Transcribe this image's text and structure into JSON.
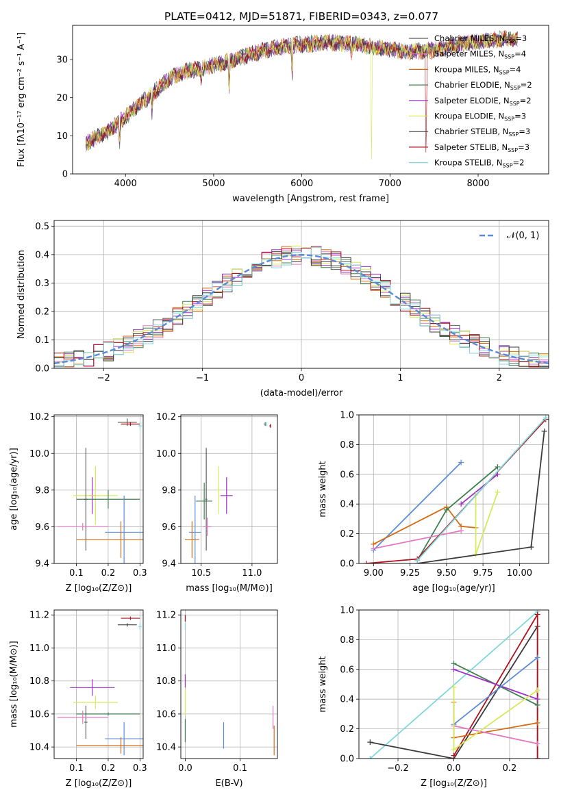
{
  "title": "PLATE=0412, MJD=51871, FIBERID=0343, z=0.077",
  "colors": {
    "s0": "#5b5b5b",
    "s1": "#e377c2",
    "s2": "#d46b12",
    "s3": "#3f7f4f",
    "s4": "#9d31c1",
    "s5": "#d7e85a",
    "s6": "#3a3a3a",
    "s7": "#b0121b",
    "s8": "#7fd6dc",
    "blue": "#5b8bd6"
  },
  "chart_data": [
    {
      "type": "line",
      "name": "spectrum",
      "xlabel": "wavelength [Angstrom, rest frame]",
      "ylabel": "Flux [fλ10⁻¹⁷ erg cm⁻² s⁻¹ A⁻¹]",
      "xlim": [
        3400,
        8800
      ],
      "ylim": [
        0,
        39
      ],
      "xticks": [
        4000,
        5000,
        6000,
        7000,
        8000
      ],
      "yticks": [
        0,
        10,
        20,
        30
      ],
      "legend": "upper right",
      "legend_items": [
        {
          "label": "Chabrier MILES, N",
          "sub": "SSP",
          "eq": "=3",
          "color": "s0"
        },
        {
          "label": "Salpeter MILES, N",
          "sub": "SSP",
          "eq": "=4",
          "color": "s1"
        },
        {
          "label": "Kroupa MILES, N",
          "sub": "SSP",
          "eq": "=4",
          "color": "s2"
        },
        {
          "label": "Chabrier ELODIE, N",
          "sub": "SSP",
          "eq": "=2",
          "color": "s3"
        },
        {
          "label": "Salpeter ELODIE, N",
          "sub": "SSP",
          "eq": "=2",
          "color": "s4"
        },
        {
          "label": "Kroupa ELODIE, N",
          "sub": "SSP",
          "eq": "=3",
          "color": "s5"
        },
        {
          "label": "Chabrier STELIB, N",
          "sub": "SSP",
          "eq": "=3",
          "color": "s6"
        },
        {
          "label": "Salpeter STELIB, N",
          "sub": "SSP",
          "eq": "=3",
          "color": "s7"
        },
        {
          "label": "Kroupa STELIB, N",
          "sub": "SSP",
          "eq": "=2",
          "color": "s8"
        }
      ],
      "continuum": [
        [
          3550,
          8
        ],
        [
          3700,
          10
        ],
        [
          3800,
          11
        ],
        [
          3900,
          13
        ],
        [
          4000,
          15
        ],
        [
          4100,
          17
        ],
        [
          4200,
          19
        ],
        [
          4300,
          21
        ],
        [
          4400,
          23
        ],
        [
          4500,
          25
        ],
        [
          4700,
          27
        ],
        [
          4900,
          28
        ],
        [
          5100,
          29
        ],
        [
          5300,
          30.5
        ],
        [
          5500,
          32
        ],
        [
          5800,
          33.5
        ],
        [
          6000,
          34
        ],
        [
          6300,
          34.5
        ],
        [
          6600,
          34
        ],
        [
          6900,
          33
        ],
        [
          7200,
          32
        ],
        [
          7500,
          32.5
        ],
        [
          7800,
          34
        ],
        [
          8100,
          35
        ],
        [
          8300,
          35.5
        ],
        [
          8500,
          35
        ]
      ],
      "lines": [
        {
          "x": 3933,
          "depth": 6
        },
        {
          "x": 4300,
          "depth": 5
        },
        {
          "x": 4861,
          "depth": 3
        },
        {
          "x": 5175,
          "depth": 8
        },
        {
          "x": 5890,
          "depth": 7
        },
        {
          "x": 6563,
          "depth": 3
        },
        {
          "x": 6790,
          "depth": 30
        },
        {
          "x": 7410,
          "depth": 32
        }
      ]
    },
    {
      "type": "bar",
      "name": "residuals",
      "xlabel": "(data-model)/error",
      "ylabel": "Normed distribution",
      "xlim": [
        -2.5,
        2.5
      ],
      "ylim": [
        0,
        0.52
      ],
      "xticks": [
        -2,
        -1,
        0,
        1,
        2
      ],
      "yticks": [
        0.0,
        0.1,
        0.2,
        0.3,
        0.4,
        0.5
      ],
      "legend": "upper right",
      "legend_label": "N(0,1)",
      "bin_width": 0.1
    },
    {
      "type": "scatter",
      "name": "age-vs-Z",
      "xlabel": "Z [log₁₀(Z/Z⊙)]",
      "ylabel": "age  [log₁₀(age/yr)]",
      "xlim": [
        0.03,
        0.31
      ],
      "ylim": [
        9.4,
        10.21
      ],
      "xticks": [
        0.1,
        0.2,
        0.3
      ],
      "yticks": [
        9.4,
        9.6,
        9.8,
        10.0,
        10.2
      ],
      "points": [
        {
          "s": "s0",
          "x": 0.26,
          "y": 10.17,
          "ex": 0.03,
          "ey": 0.02
        },
        {
          "s": "s7",
          "x": 0.27,
          "y": 10.16,
          "ex": 0.03,
          "ey": 0.01
        },
        {
          "s": "s8",
          "x": 0.3,
          "y": 10.15,
          "ex": 0.005,
          "ey": 0.02
        },
        {
          "s": "s4",
          "x": 0.15,
          "y": 9.77,
          "ex": 0.01,
          "ey": 0.1
        },
        {
          "s": "s5",
          "x": 0.16,
          "y": 9.77,
          "ex": 0.07,
          "ey": 0.16
        },
        {
          "s": "s3",
          "x": 0.2,
          "y": 9.75,
          "ex": 0.1,
          "ey": 0.05
        },
        {
          "s": "s0",
          "x": 0.13,
          "y": 9.75,
          "ex": 0.005,
          "ey": 0.28
        },
        {
          "s": "s1",
          "x": 0.12,
          "y": 9.6,
          "ex": 0.08,
          "ey": 0.02
        },
        {
          "s": "blue",
          "x": 0.25,
          "y": 9.57,
          "ex": 0.06,
          "ey": 0.2
        },
        {
          "s": "s2",
          "x": 0.24,
          "y": 9.53,
          "ex": 0.14,
          "ey": 0.1
        }
      ]
    },
    {
      "type": "scatter",
      "name": "age-vs-mass",
      "xlabel": "mass [log₁₀(M/M⊙)]",
      "ylabel": "",
      "xlim": [
        10.3,
        11.25
      ],
      "ylim": [
        9.4,
        10.21
      ],
      "xticks": [
        10.5,
        11.0
      ],
      "yticks": [
        9.4,
        9.6,
        9.8,
        10.0,
        10.2
      ],
      "points": [
        {
          "s": "s0",
          "x": 11.13,
          "y": 10.16,
          "ex": 0.01,
          "ey": 0.01
        },
        {
          "s": "s8",
          "x": 11.14,
          "y": 10.16,
          "ex": 0.01,
          "ey": 0.01
        },
        {
          "s": "s7",
          "x": 11.18,
          "y": 10.15,
          "ex": 0.01,
          "ey": 0.01
        },
        {
          "s": "s4",
          "x": 10.75,
          "y": 9.77,
          "ex": 0.06,
          "ey": 0.1
        },
        {
          "s": "s5",
          "x": 10.67,
          "y": 9.8,
          "ex": 0.02,
          "ey": 0.13
        },
        {
          "s": "s3",
          "x": 10.53,
          "y": 9.74,
          "ex": 0.08,
          "ey": 0.1
        },
        {
          "s": "s0",
          "x": 10.55,
          "y": 9.75,
          "ex": 0.01,
          "ey": 0.28
        },
        {
          "s": "s1",
          "x": 10.56,
          "y": 9.6,
          "ex": 0.04,
          "ey": 0.05
        },
        {
          "s": "blue",
          "x": 10.44,
          "y": 9.57,
          "ex": 0.06,
          "ey": 0.2
        },
        {
          "s": "s2",
          "x": 10.41,
          "y": 9.53,
          "ex": 0.07,
          "ey": 0.1
        }
      ]
    },
    {
      "type": "line",
      "name": "mass-weight-vs-age",
      "xlabel": "age  [log₁₀(age/yr)]",
      "ylabel": "mass weight",
      "xlim": [
        8.9,
        10.2
      ],
      "ylim": [
        0,
        1.0
      ],
      "xticks": [
        9.0,
        9.25,
        9.5,
        9.75,
        10.0
      ],
      "xticklabels": [
        "9.00",
        "9.25",
        "9.50",
        "9.75",
        "10.00"
      ],
      "yticks": [
        0.0,
        0.2,
        0.4,
        0.6,
        0.8,
        1.0
      ],
      "series": [
        {
          "s": "blue",
          "x": [
            9.0,
            9.6
          ],
          "y": [
            0.09,
            0.68
          ]
        },
        {
          "s": "s2",
          "x": [
            9.0,
            9.5,
            9.6,
            9.7
          ],
          "y": [
            0.13,
            0.38,
            0.25,
            0.24
          ]
        },
        {
          "s": "s3",
          "x": [
            9.3,
            9.5,
            9.85
          ],
          "y": [
            0.02,
            0.36,
            0.65
          ]
        },
        {
          "s": "s4",
          "x": [
            9.6,
            9.85
          ],
          "y": [
            0.4,
            0.6
          ]
        },
        {
          "s": "s1",
          "x": [
            9.0,
            9.6
          ],
          "y": [
            0.1,
            0.22
          ]
        },
        {
          "s": "s5",
          "x": [
            9.7,
            9.7,
            9.85
          ],
          "y": [
            0.46,
            0.06,
            0.48
          ]
        },
        {
          "s": "s6",
          "x": [
            9.3,
            10.08,
            10.17
          ],
          "y": [
            0.0,
            0.11,
            0.89
          ]
        },
        {
          "s": "s7",
          "x": [
            8.95,
            9.3,
            10.18
          ],
          "y": [
            0.0,
            0.03,
            0.97
          ]
        },
        {
          "s": "s8",
          "x": [
            9.3,
            10.18
          ],
          "y": [
            0.02,
            0.98
          ]
        }
      ]
    },
    {
      "type": "scatter",
      "name": "mass-vs-Z",
      "xlabel": "Z [log₁₀(Z/Z⊙)]",
      "ylabel": "mass [log₁₀(M/M⊙)]",
      "xlim": [
        0.03,
        0.31
      ],
      "ylim": [
        10.33,
        11.23
      ],
      "xticks": [
        0.1,
        0.2,
        0.3
      ],
      "yticks": [
        10.4,
        10.6,
        10.8,
        11.0,
        11.2
      ],
      "points": [
        {
          "s": "s7",
          "x": 0.27,
          "y": 11.18,
          "ex": 0.03,
          "ey": 0.01
        },
        {
          "s": "s6",
          "x": 0.26,
          "y": 11.14,
          "ex": 0.03,
          "ey": 0.01
        },
        {
          "s": "s8",
          "x": 0.3,
          "y": 11.13,
          "ex": 0.005,
          "ey": 0.02
        },
        {
          "s": "s4",
          "x": 0.15,
          "y": 10.76,
          "ex": 0.07,
          "ey": 0.05
        },
        {
          "s": "s5",
          "x": 0.16,
          "y": 10.67,
          "ex": 0.07,
          "ey": 0.04
        },
        {
          "s": "s3",
          "x": 0.2,
          "y": 10.6,
          "ex": 0.1,
          "ey": 0.01
        },
        {
          "s": "s0",
          "x": 0.13,
          "y": 10.55,
          "ex": 0.005,
          "ey": 0.1
        },
        {
          "s": "s1",
          "x": 0.12,
          "y": 10.58,
          "ex": 0.08,
          "ey": 0.04
        },
        {
          "s": "blue",
          "x": 0.25,
          "y": 10.45,
          "ex": 0.06,
          "ey": 0.1
        },
        {
          "s": "s2",
          "x": 0.24,
          "y": 10.41,
          "ex": 0.14,
          "ey": 0.05
        }
      ]
    },
    {
      "type": "scatter",
      "name": "mass-vs-EBV",
      "xlabel": "E(B-V)",
      "ylabel": "",
      "xlim": [
        -0.008,
        0.168
      ],
      "ylim": [
        10.33,
        11.23
      ],
      "xticks": [
        0.0,
        0.1
      ],
      "yticks": [
        10.4,
        10.6,
        10.8,
        11.0,
        11.2
      ],
      "points": [
        {
          "s": "s7",
          "x": 0.0,
          "y": 11.18,
          "ex": 0,
          "ey": 0.02
        },
        {
          "s": "s8",
          "x": 0.0,
          "y": 11.13,
          "ex": 0,
          "ey": 0.02
        },
        {
          "s": "s4",
          "x": 0.0,
          "y": 10.8,
          "ex": 0,
          "ey": 0.04
        },
        {
          "s": "s5",
          "x": 0.0,
          "y": 10.67,
          "ex": 0,
          "ey": 0.08
        },
        {
          "s": "s3",
          "x": 0.0,
          "y": 10.5,
          "ex": 0,
          "ey": 0.07
        },
        {
          "s": "blue",
          "x": 0.07,
          "y": 10.47,
          "ex": 0,
          "ey": 0.08
        },
        {
          "s": "s1",
          "x": 0.16,
          "y": 10.58,
          "ex": 0,
          "ey": 0.07
        },
        {
          "s": "s2",
          "x": 0.162,
          "y": 10.44,
          "ex": 0,
          "ey": 0.09
        }
      ]
    },
    {
      "type": "line",
      "name": "mass-weight-vs-Z",
      "xlabel": "Z [log₁₀(Z/Z⊙)]",
      "ylabel": "mass weight",
      "xlim": [
        -0.34,
        0.34
      ],
      "ylim": [
        0,
        1.0
      ],
      "xticks": [
        -0.2,
        0.0,
        0.2
      ],
      "xticklabels": [
        "−0.2",
        "0.0",
        "0.2"
      ],
      "yticks": [
        0.0,
        0.2,
        0.4,
        0.6,
        0.8,
        1.0
      ],
      "series": [
        {
          "s": "s8",
          "x": [
            -0.3,
            0.3
          ],
          "y": [
            0.0,
            0.99
          ]
        },
        {
          "s": "s6",
          "x": [
            -0.3,
            0.0,
            0.3,
            0.3
          ],
          "y": [
            0.11,
            0.0,
            0.89,
            0.0
          ]
        },
        {
          "s": "s7",
          "x": [
            0.0,
            0.3,
            0.3
          ],
          "y": [
            0.02,
            0.97,
            0.0
          ]
        },
        {
          "s": "s3",
          "x": [
            0.0,
            0.3
          ],
          "y": [
            0.64,
            0.36
          ]
        },
        {
          "s": "s4",
          "x": [
            0.0,
            0.3
          ],
          "y": [
            0.6,
            0.4
          ]
        },
        {
          "s": "blue",
          "x": [
            0.0,
            0.3
          ],
          "y": [
            0.23,
            0.68
          ]
        },
        {
          "s": "s2",
          "x": [
            0.0,
            0.0,
            0.3
          ],
          "y": [
            0.38,
            0.14,
            0.24
          ]
        },
        {
          "s": "s1",
          "x": [
            0.0,
            0.3
          ],
          "y": [
            0.22,
            0.1
          ]
        },
        {
          "s": "s5",
          "x": [
            0.0,
            0.0,
            0.3
          ],
          "y": [
            0.48,
            0.06,
            0.46
          ]
        }
      ]
    }
  ]
}
